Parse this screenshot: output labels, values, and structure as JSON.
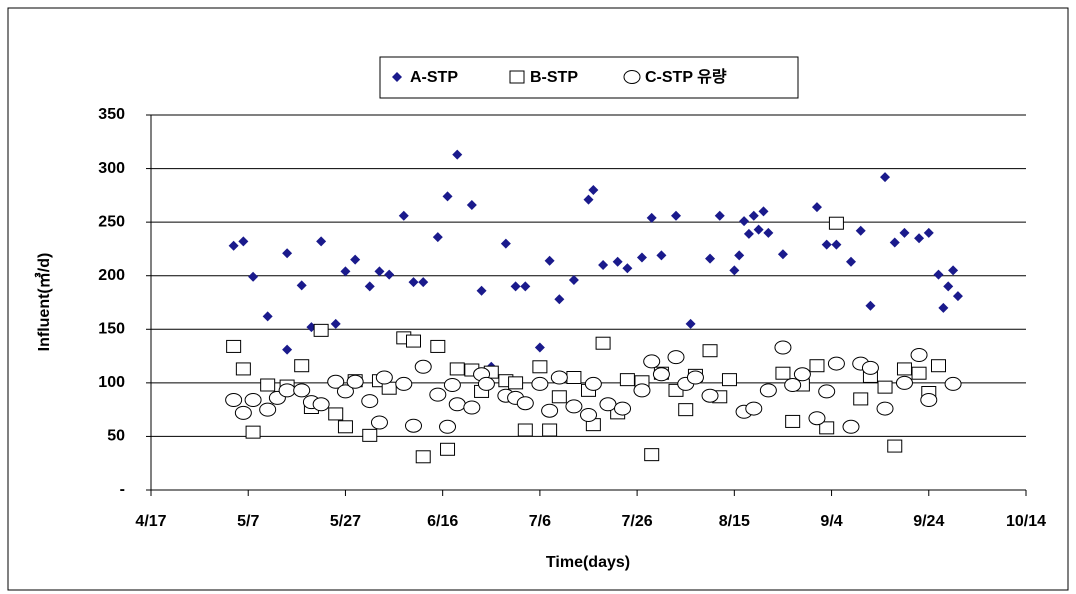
{
  "chart_data": {
    "type": "scatter",
    "xlabel": "Time(days)",
    "ylabel": "Influent(㎥/d)",
    "xlim": [
      "4/17",
      "10/14"
    ],
    "xticks": [
      "4/17",
      "5/7",
      "5/27",
      "6/16",
      "7/6",
      "7/26",
      "8/15",
      "9/4",
      "9/24",
      "10/14"
    ],
    "ylim": [
      0,
      350
    ],
    "yticks": [
      {
        "value": 0,
        "label": "-"
      },
      50,
      100,
      150,
      200,
      250,
      300,
      350
    ],
    "grid": true,
    "legend": "top",
    "series": [
      {
        "name": "A-STP",
        "color": "#1a1a8c",
        "marker": "diamond",
        "x": [
          "5/4",
          "5/6",
          "5/8",
          "5/11",
          "5/15",
          "5/15",
          "5/18",
          "5/20",
          "5/22",
          "5/25",
          "5/27",
          "5/29",
          "6/1",
          "6/3",
          "6/5",
          "6/8",
          "6/10",
          "6/12",
          "6/15",
          "6/17",
          "6/19",
          "6/22",
          "6/24",
          "6/26",
          "6/29",
          "7/1",
          "7/3",
          "7/6",
          "7/8",
          "7/10",
          "7/13",
          "7/16",
          "7/17",
          "7/19",
          "7/22",
          "7/24",
          "7/27",
          "7/29",
          "7/31",
          "8/3",
          "8/6",
          "8/10",
          "8/12",
          "8/15",
          "8/16",
          "8/17",
          "8/18",
          "8/19",
          "8/20",
          "8/21",
          "8/22",
          "8/25",
          "9/1",
          "9/3",
          "9/5",
          "9/8",
          "9/10",
          "9/12",
          "9/15",
          "9/17",
          "9/19",
          "9/22",
          "9/24",
          "9/26",
          "9/27",
          "9/28",
          "9/29",
          "9/30"
        ],
        "values": [
          228,
          232,
          199,
          162,
          131,
          221,
          191,
          152,
          232,
          155,
          204,
          215,
          190,
          204,
          201,
          256,
          194,
          194,
          236,
          274,
          313,
          266,
          186,
          115,
          230,
          190,
          190,
          133,
          214,
          178,
          196,
          271,
          280,
          210,
          213,
          207,
          217,
          254,
          219,
          256,
          155,
          216,
          256,
          205,
          219,
          251,
          239,
          256,
          243,
          260,
          240,
          220,
          264,
          229,
          229,
          213,
          242,
          172,
          292,
          231,
          240,
          235,
          240,
          201,
          170,
          190,
          205,
          181
        ]
      },
      {
        "name": "B-STP",
        "color": "#ffffff",
        "marker": "square",
        "x": [
          "5/4",
          "5/6",
          "5/8",
          "5/11",
          "5/15",
          "5/18",
          "5/20",
          "5/22",
          "5/25",
          "5/27",
          "5/29",
          "6/1",
          "6/3",
          "6/5",
          "6/8",
          "6/10",
          "6/12",
          "6/15",
          "6/17",
          "6/19",
          "6/22",
          "6/24",
          "6/26",
          "6/29",
          "7/1",
          "7/3",
          "7/6",
          "7/8",
          "7/10",
          "7/13",
          "7/16",
          "7/17",
          "7/19",
          "7/22",
          "7/24",
          "7/27",
          "7/29",
          "7/31",
          "8/3",
          "8/5",
          "8/7",
          "8/10",
          "8/12",
          "8/14",
          "8/25",
          "8/27",
          "8/29",
          "9/1",
          "9/3",
          "9/5",
          "9/10",
          "9/12",
          "9/15",
          "9/17",
          "9/19",
          "9/22",
          "9/24",
          "9/26"
        ],
        "values": [
          134,
          113,
          54,
          98,
          97,
          116,
          77,
          149,
          71,
          59,
          102,
          51,
          102,
          95,
          142,
          139,
          31,
          134,
          38,
          113,
          112,
          92,
          110,
          102,
          100,
          56,
          115,
          56,
          87,
          105,
          93,
          61,
          137,
          72,
          103,
          101,
          33,
          109,
          93,
          75,
          107,
          130,
          87,
          103,
          109,
          64,
          98,
          116,
          58,
          249,
          85,
          106,
          96,
          41,
          113,
          109,
          91,
          116
        ]
      },
      {
        "name": "C-STP 유량",
        "color": "#ffffff",
        "marker": "circle",
        "x": [
          "5/4",
          "5/6",
          "5/8",
          "5/11",
          "5/13",
          "5/15",
          "5/18",
          "5/20",
          "5/22",
          "5/25",
          "5/27",
          "5/29",
          "6/1",
          "6/3",
          "6/4",
          "6/8",
          "6/10",
          "6/12",
          "6/15",
          "6/17",
          "6/18",
          "6/19",
          "6/22",
          "6/24",
          "6/25",
          "6/29",
          "7/1",
          "7/3",
          "7/6",
          "7/8",
          "7/10",
          "7/13",
          "7/16",
          "7/17",
          "7/20",
          "7/23",
          "7/27",
          "7/29",
          "7/31",
          "8/3",
          "8/5",
          "8/7",
          "8/10",
          "8/17",
          "8/19",
          "8/22",
          "8/25",
          "8/27",
          "8/29",
          "9/1",
          "9/3",
          "9/5",
          "9/8",
          "9/10",
          "9/12",
          "9/15",
          "9/19",
          "9/22",
          "9/24",
          "9/29"
        ],
        "values": [
          84,
          72,
          84,
          75,
          86,
          93,
          93,
          82,
          80,
          101,
          92,
          101,
          83,
          63,
          105,
          99,
          60,
          115,
          89,
          59,
          98,
          80,
          77,
          108,
          99,
          88,
          86,
          81,
          99,
          74,
          105,
          78,
          70,
          99,
          80,
          76,
          93,
          120,
          108,
          124,
          99,
          105,
          88,
          73,
          76,
          93,
          133,
          98,
          108,
          67,
          92,
          118,
          59,
          118,
          114,
          76,
          100,
          126,
          84,
          99
        ]
      }
    ]
  }
}
